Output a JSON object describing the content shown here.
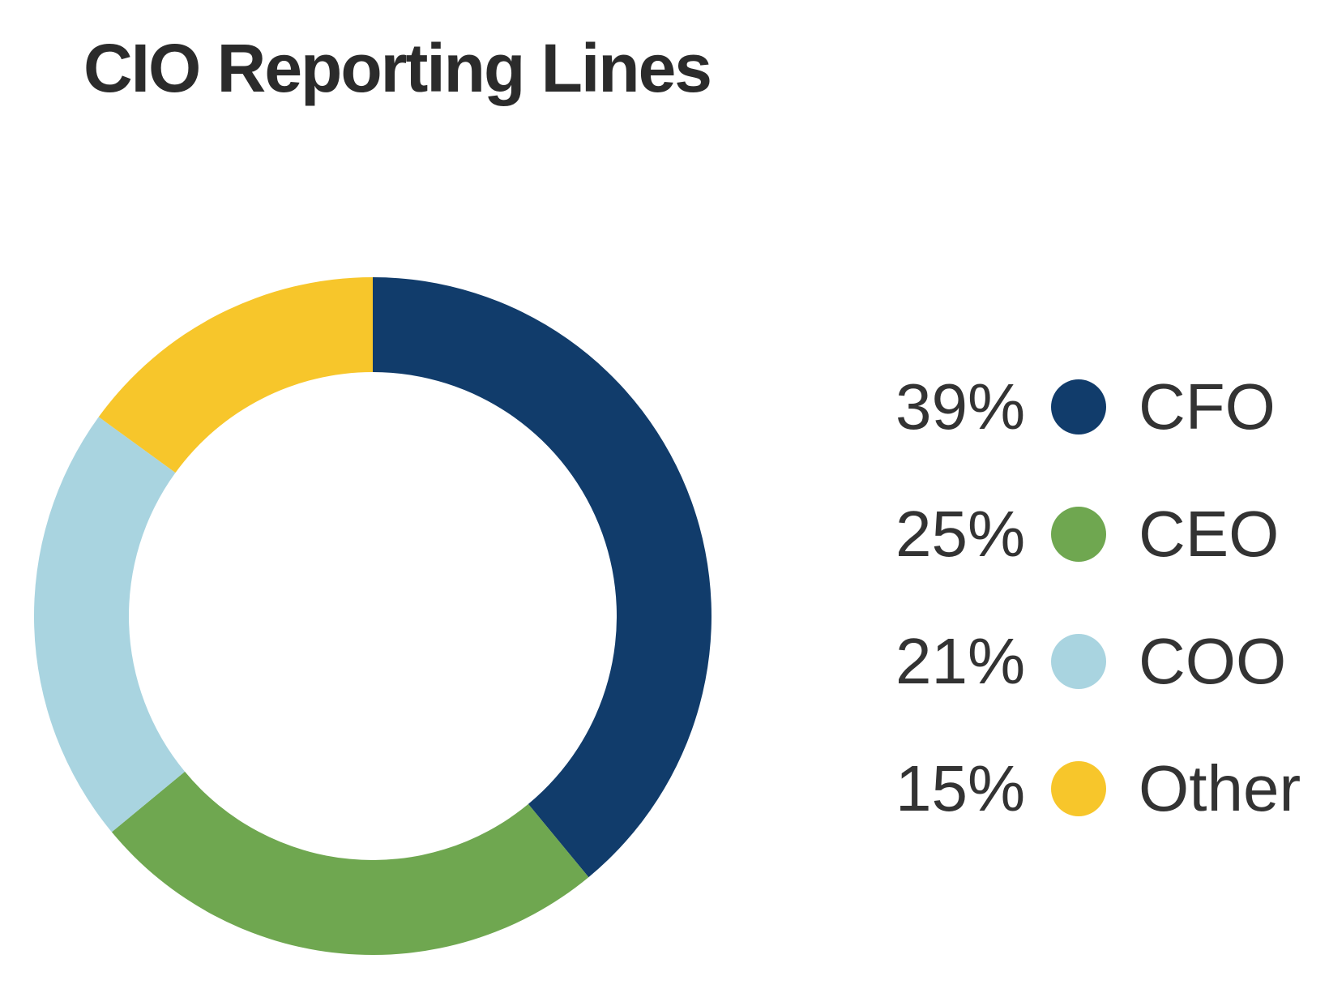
{
  "chart_title": "CIO Reporting Lines",
  "chart_data": {
    "type": "pie",
    "subtype": "donut",
    "title": "CIO Reporting Lines",
    "categories": [
      "CFO",
      "CEO",
      "COO",
      "Other"
    ],
    "values": [
      39,
      25,
      21,
      15
    ],
    "unit": "%",
    "start_angle_deg": 0,
    "direction": "clockwise",
    "donut_hole_ratio": 0.72,
    "legend_position": "right",
    "background_color": "#ffffff",
    "title_color": "#2b2b2b",
    "legend_text_color": "#333333",
    "segments": [
      {
        "label": "CFO",
        "value": 39,
        "pct_label": "39%",
        "color": "#113C6B"
      },
      {
        "label": "CEO",
        "value": 25,
        "pct_label": "25%",
        "color": "#6FA750"
      },
      {
        "label": "COO",
        "value": 21,
        "pct_label": "21%",
        "color": "#A9D4E0"
      },
      {
        "label": "Other",
        "value": 15,
        "pct_label": "15%",
        "color": "#F7C62B"
      }
    ]
  }
}
